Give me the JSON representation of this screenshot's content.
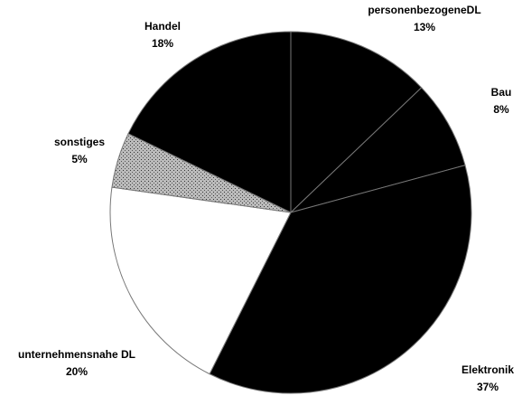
{
  "chart_data": {
    "type": "pie",
    "categories": [
      "personenbezogeneDL",
      "Bau",
      "Elektronik",
      "unternehmensnahe DL",
      "sonstiges",
      "Handel"
    ],
    "values": [
      13,
      8,
      37,
      20,
      5,
      18
    ],
    "value_labels": [
      "13%",
      "8%",
      "37%",
      "20%",
      "5%",
      "18%"
    ],
    "colors": [
      "#000000",
      "#000000",
      "#000000",
      "#ffffff",
      "#9a9a9a",
      "#000000"
    ]
  }
}
